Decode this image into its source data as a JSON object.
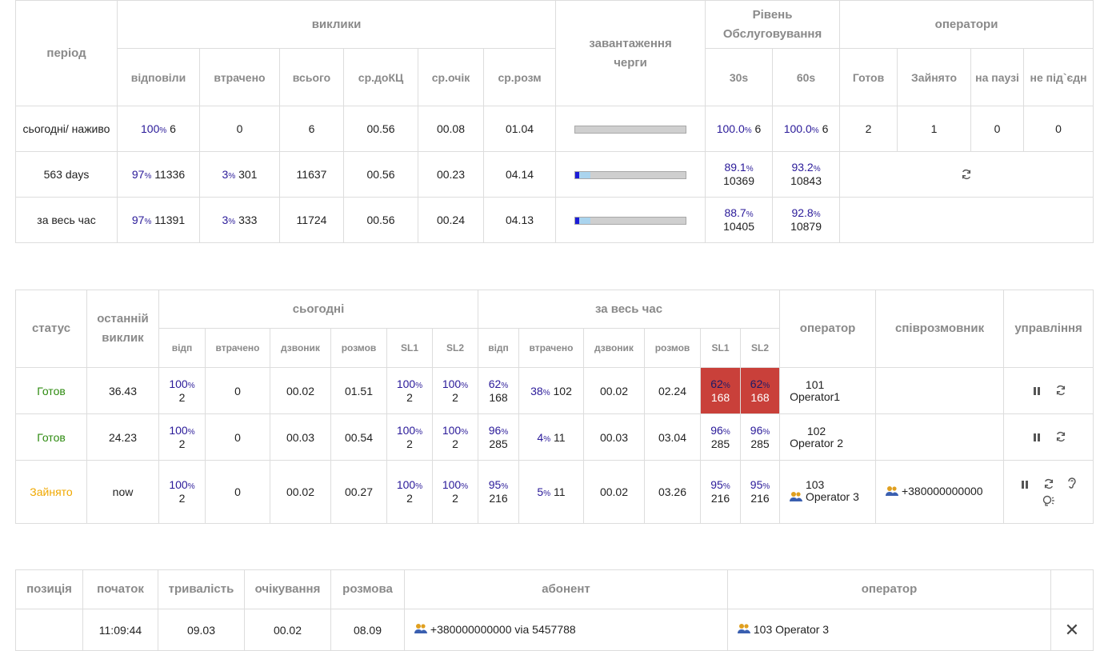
{
  "summary": {
    "headers": {
      "period": "період",
      "calls": "виклики",
      "queue_load": "завантаження черги",
      "service_level": "Рівень Обслуговування",
      "operators": "оператори",
      "answered": "відповіли",
      "lost": "втрачено",
      "total": "всього",
      "avg_to_cc": "ср.доКЦ",
      "avg_wait": "ср.очік",
      "avg_talk": "ср.розм",
      "sl30": "30s",
      "sl60": "60s",
      "ready": "Готов",
      "busy": "Зайнято",
      "pause": "на паузі",
      "disconnected": "не під`єдн"
    },
    "rows": [
      {
        "period": "сьогодні/ наживо",
        "answered_pct": "100",
        "answered": "6",
        "lost_pct": "",
        "lost": "0",
        "total": "6",
        "avg_to_cc": "00.56",
        "avg_wait": "00.08",
        "avg_talk": "01.04",
        "load": 0,
        "sl30_pct": "100.0",
        "sl30": "6",
        "sl60_pct": "100.0",
        "sl60": "6",
        "op_ready": "2",
        "op_busy": "1",
        "op_pause": "0",
        "op_disc": "0"
      },
      {
        "period": "563 days",
        "answered_pct": "97",
        "answered": "11336",
        "lost_pct": "3",
        "lost": "301",
        "total": "11637",
        "avg_to_cc": "00.56",
        "avg_wait": "00.23",
        "avg_talk": "04.14",
        "load": 0.14,
        "sl30_pct": "89.1",
        "sl30": "10369",
        "sl60_pct": "93.2",
        "sl60": "10843"
      },
      {
        "period": "за весь час",
        "answered_pct": "97",
        "answered": "11391",
        "lost_pct": "3",
        "lost": "333",
        "total": "11724",
        "avg_to_cc": "00.56",
        "avg_wait": "00.24",
        "avg_talk": "04.13",
        "load": 0.14,
        "sl30_pct": "88.7",
        "sl30": "10405",
        "sl60_pct": "92.8",
        "sl60": "10879"
      }
    ]
  },
  "agents": {
    "headers": {
      "status": "статус",
      "last_call": "останній виклик",
      "today": "сьогодні",
      "all_time": "за весь час",
      "operator": "оператор",
      "partner": "співрозмовник",
      "control": "управління",
      "answered": "відп",
      "lost": "втрачено",
      "caller": "дзвоник",
      "talk": "розмов",
      "sl1": "SL1",
      "sl2": "SL2"
    },
    "rows": [
      {
        "status": "Готов",
        "last_call": "36.43",
        "t_ans_pct": "100",
        "t_ans": "2",
        "t_lost": "0",
        "t_caller": "00.02",
        "t_talk": "01.51",
        "t_sl1_pct": "100",
        "t_sl1": "2",
        "t_sl2_pct": "100",
        "t_sl2": "2",
        "a_ans_pct": "62",
        "a_ans": "168",
        "a_lost_pct": "38",
        "a_lost": "102",
        "a_caller": "00.02",
        "a_talk": "02.24",
        "a_sl1_pct": "62",
        "a_sl1": "168",
        "a_sl2_pct": "62",
        "a_sl2": "168",
        "op_num": "101",
        "op_name": "Operator1",
        "partner": ""
      },
      {
        "status": "Готов",
        "last_call": "24.23",
        "t_ans_pct": "100",
        "t_ans": "2",
        "t_lost": "0",
        "t_caller": "00.03",
        "t_talk": "00.54",
        "t_sl1_pct": "100",
        "t_sl1": "2",
        "t_sl2_pct": "100",
        "t_sl2": "2",
        "a_ans_pct": "96",
        "a_ans": "285",
        "a_lost_pct": "4",
        "a_lost": "11",
        "a_caller": "00.03",
        "a_talk": "03.04",
        "a_sl1_pct": "96",
        "a_sl1": "285",
        "a_sl2_pct": "96",
        "a_sl2": "285",
        "op_num": "102",
        "op_name": "Operator 2",
        "partner": ""
      },
      {
        "status": "Зайнято",
        "last_call": "now",
        "t_ans_pct": "100",
        "t_ans": "2",
        "t_lost": "0",
        "t_caller": "00.02",
        "t_talk": "00.27",
        "t_sl1_pct": "100",
        "t_sl1": "2",
        "t_sl2_pct": "100",
        "t_sl2": "2",
        "a_ans_pct": "95",
        "a_ans": "216",
        "a_lost_pct": "5",
        "a_lost": "11",
        "a_caller": "00.02",
        "a_talk": "03.26",
        "a_sl1_pct": "95",
        "a_sl1": "216",
        "a_sl2_pct": "95",
        "a_sl2": "216",
        "op_num": "103",
        "op_name": "Operator 3",
        "partner": "+380000000000"
      }
    ]
  },
  "calls": {
    "headers": {
      "position": "позиція",
      "start": "початок",
      "duration": "тривалість",
      "wait": "очікування",
      "talk": "розмова",
      "subscriber": "абонент",
      "operator": "оператор"
    },
    "rows": [
      {
        "position": "",
        "start": "11:09:44",
        "duration": "09.03",
        "wait": "00.02",
        "talk": "08.09",
        "subscriber": "+380000000000 via 5457788",
        "operator": "103 Operator 3",
        "close": "✕"
      }
    ]
  },
  "colors": {
    "accent_pct": "#2a1a99",
    "ready": "#2e8b10",
    "busy": "#f0a800",
    "highlight": "#c9403a"
  },
  "icons": [
    "pause-icon",
    "refresh-icon",
    "listen-icon",
    "whisper-icon",
    "users-icon",
    "close-icon"
  ]
}
